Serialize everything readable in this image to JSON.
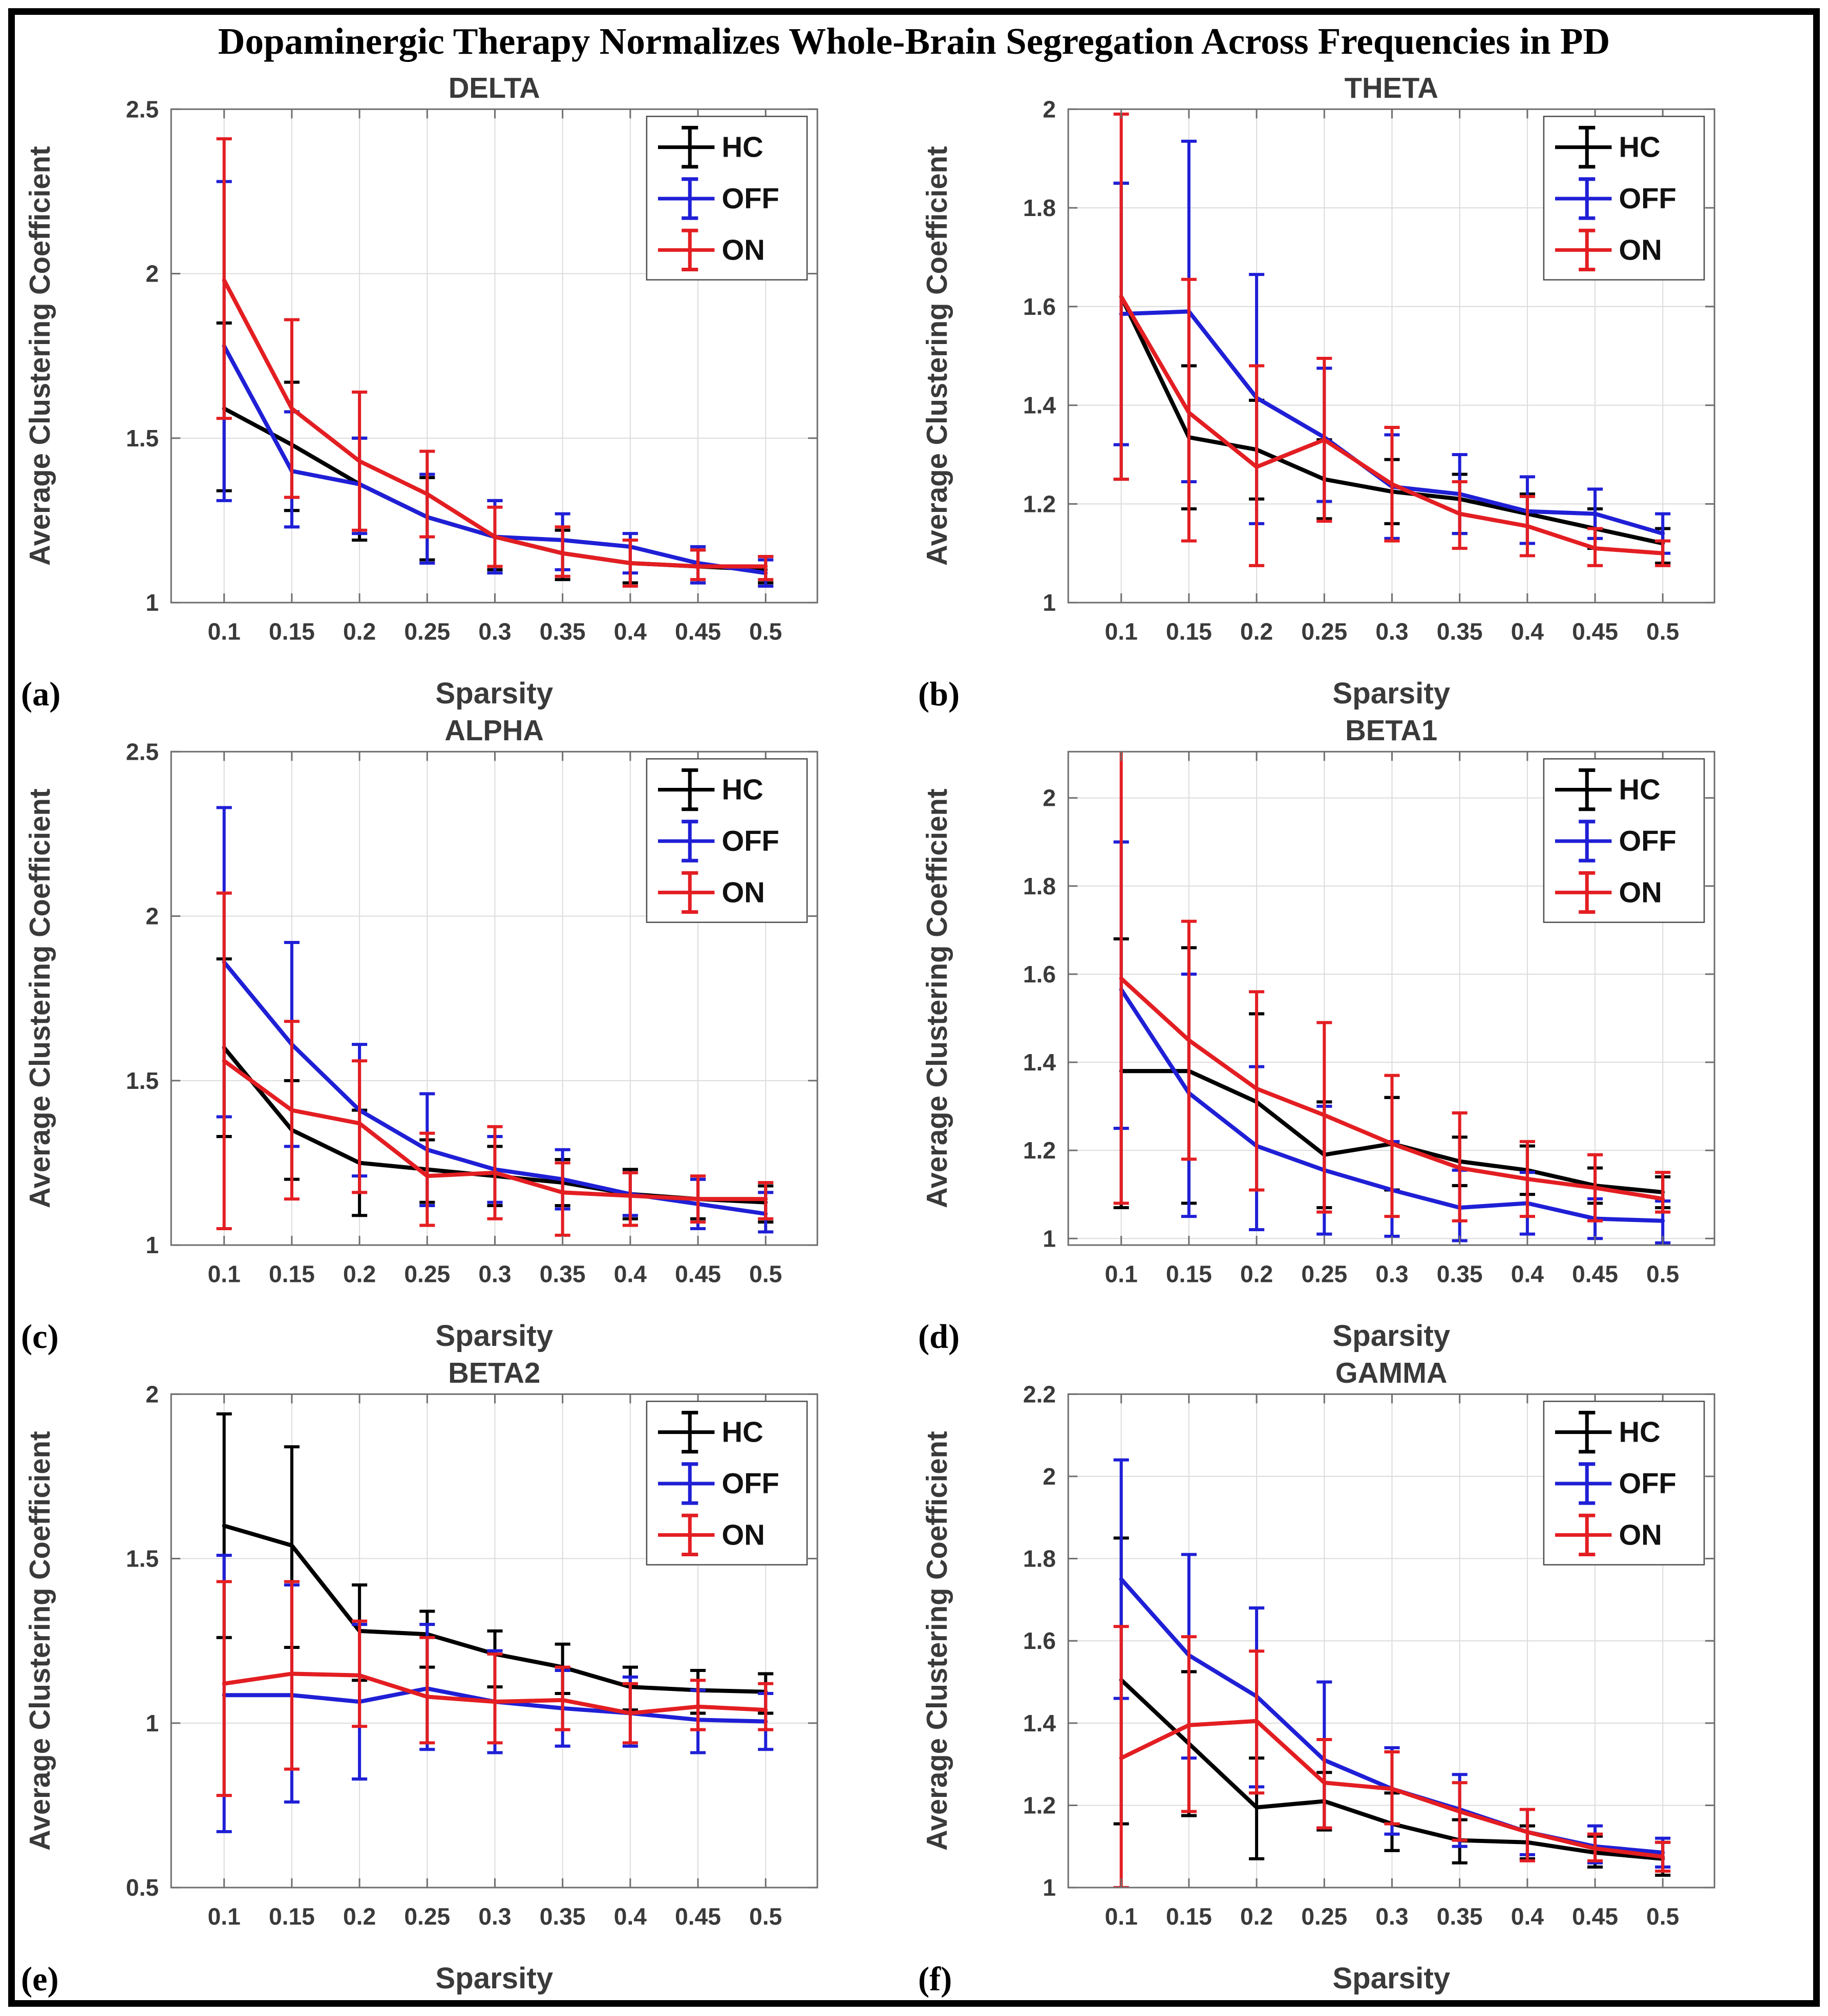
{
  "figure": {
    "title": "Dopaminergic Therapy Normalizes Whole-Brain Segregation Across Frequencies in PD",
    "xlabel": "Sparsity",
    "ylabel": "Average Clustering Coefficient",
    "legend_labels": [
      "HC",
      "OFF",
      "ON"
    ],
    "colors": {
      "HC": "#000000",
      "OFF": "#1f1fd6",
      "ON": "#e31e22"
    },
    "grid_color": "#dcdcdc",
    "axis_color": "#6f6f6f",
    "text_color": "#3a3a3a",
    "xtick_labels": [
      "0.1",
      "0.15",
      "0.2",
      "0.25",
      "0.3",
      "0.35",
      "0.4",
      "0.45",
      "0.5"
    ]
  },
  "chart_data": [
    {
      "type": "line",
      "letter": "(a)",
      "title": "DELTA",
      "xlabel": "Sparsity",
      "ylabel": "Average Clustering Coefficient",
      "x": [
        0.1,
        0.15,
        0.2,
        0.25,
        0.3,
        0.35,
        0.4,
        0.45,
        0.5
      ],
      "ylim": [
        1,
        2.5
      ],
      "yticks": [
        1,
        1.5,
        2,
        2.5
      ],
      "ytick_labels": [
        "1",
        "1.5",
        "2",
        "2.5"
      ],
      "legend": [
        "HC",
        "OFF",
        "ON"
      ],
      "series": [
        {
          "name": "HC",
          "color": "#000000",
          "values": [
            1.59,
            1.48,
            1.36,
            1.26,
            1.2,
            1.15,
            1.12,
            1.11,
            1.1
          ],
          "err_lo": [
            1.34,
            1.28,
            1.19,
            1.13,
            1.1,
            1.07,
            1.06,
            1.06,
            1.06
          ],
          "err_hi": [
            1.85,
            1.67,
            1.5,
            1.38,
            1.31,
            1.22,
            1.19,
            1.16,
            1.14
          ]
        },
        {
          "name": "OFF",
          "color": "#1f1fd6",
          "values": [
            1.78,
            1.4,
            1.36,
            1.26,
            1.2,
            1.19,
            1.17,
            1.12,
            1.09
          ],
          "err_lo": [
            1.31,
            1.23,
            1.21,
            1.12,
            1.09,
            1.1,
            1.09,
            1.06,
            1.05
          ],
          "err_hi": [
            2.28,
            1.58,
            1.5,
            1.39,
            1.31,
            1.27,
            1.21,
            1.17,
            1.13
          ]
        },
        {
          "name": "ON",
          "color": "#e31e22",
          "values": [
            1.98,
            1.59,
            1.43,
            1.33,
            1.2,
            1.15,
            1.12,
            1.11,
            1.11
          ],
          "err_lo": [
            1.56,
            1.32,
            1.22,
            1.2,
            1.11,
            1.08,
            1.05,
            1.07,
            1.07
          ],
          "err_hi": [
            2.41,
            1.86,
            1.64,
            1.46,
            1.29,
            1.23,
            1.19,
            1.16,
            1.14
          ]
        }
      ]
    },
    {
      "type": "line",
      "letter": "(b)",
      "title": "THETA",
      "xlabel": "Sparsity",
      "ylabel": "Average Clustering Coefficient",
      "x": [
        0.1,
        0.15,
        0.2,
        0.25,
        0.3,
        0.35,
        0.4,
        0.45,
        0.5
      ],
      "ylim": [
        1,
        2
      ],
      "yticks": [
        1,
        1.2,
        1.4,
        1.6,
        1.8,
        2
      ],
      "ytick_labels": [
        "1",
        "1.2",
        "1.4",
        "1.6",
        "1.8",
        "2"
      ],
      "legend": [
        "HC",
        "OFF",
        "ON"
      ],
      "series": [
        {
          "name": "HC",
          "color": "#000000",
          "values": [
            1.62,
            1.335,
            1.31,
            1.25,
            1.225,
            1.21,
            1.18,
            1.15,
            1.12
          ],
          "err_lo": [
            1.25,
            1.19,
            1.21,
            1.17,
            1.16,
            1.14,
            1.12,
            1.11,
            1.08
          ],
          "err_hi": [
            1.85,
            1.48,
            1.41,
            1.33,
            1.29,
            1.26,
            1.22,
            1.19,
            1.15
          ]
        },
        {
          "name": "OFF",
          "color": "#1f1fd6",
          "values": [
            1.585,
            1.59,
            1.415,
            1.335,
            1.235,
            1.22,
            1.185,
            1.18,
            1.14
          ],
          "err_lo": [
            1.32,
            1.245,
            1.16,
            1.205,
            1.13,
            1.14,
            1.12,
            1.13,
            1.1
          ],
          "err_hi": [
            1.85,
            1.935,
            1.665,
            1.475,
            1.34,
            1.3,
            1.255,
            1.23,
            1.18
          ]
        },
        {
          "name": "ON",
          "color": "#e31e22",
          "values": [
            1.62,
            1.385,
            1.275,
            1.33,
            1.24,
            1.18,
            1.155,
            1.11,
            1.1
          ],
          "err_lo": [
            1.25,
            1.125,
            1.075,
            1.165,
            1.125,
            1.11,
            1.095,
            1.075,
            1.075
          ],
          "err_hi": [
            1.99,
            1.655,
            1.48,
            1.495,
            1.355,
            1.245,
            1.215,
            1.15,
            1.125
          ]
        }
      ]
    },
    {
      "type": "line",
      "letter": "(c)",
      "title": "ALPHA",
      "xlabel": "Sparsity",
      "ylabel": "Average Clustering Coefficient",
      "x": [
        0.1,
        0.15,
        0.2,
        0.25,
        0.3,
        0.35,
        0.4,
        0.45,
        0.5
      ],
      "ylim": [
        1,
        2.5
      ],
      "yticks": [
        1,
        1.5,
        2,
        2.5
      ],
      "ytick_labels": [
        "1",
        "1.5",
        "2",
        "2.5"
      ],
      "legend": [
        "HC",
        "OFF",
        "ON"
      ],
      "series": [
        {
          "name": "HC",
          "color": "#000000",
          "values": [
            1.6,
            1.35,
            1.25,
            1.23,
            1.21,
            1.19,
            1.155,
            1.14,
            1.13
          ],
          "err_lo": [
            1.33,
            1.2,
            1.09,
            1.13,
            1.12,
            1.12,
            1.08,
            1.08,
            1.07
          ],
          "err_hi": [
            1.87,
            1.5,
            1.41,
            1.32,
            1.3,
            1.26,
            1.23,
            1.2,
            1.18
          ]
        },
        {
          "name": "OFF",
          "color": "#1f1fd6",
          "values": [
            1.86,
            1.61,
            1.41,
            1.29,
            1.23,
            1.2,
            1.155,
            1.125,
            1.095
          ],
          "err_lo": [
            1.39,
            1.3,
            1.21,
            1.12,
            1.13,
            1.11,
            1.09,
            1.05,
            1.04
          ],
          "err_hi": [
            2.33,
            1.92,
            1.61,
            1.46,
            1.33,
            1.29,
            1.22,
            1.2,
            1.16
          ]
        },
        {
          "name": "ON",
          "color": "#e31e22",
          "values": [
            1.56,
            1.41,
            1.37,
            1.21,
            1.22,
            1.16,
            1.15,
            1.14,
            1.14
          ],
          "err_lo": [
            1.05,
            1.14,
            1.16,
            1.06,
            1.08,
            1.03,
            1.06,
            1.07,
            1.08
          ],
          "err_hi": [
            2.07,
            1.68,
            1.56,
            1.34,
            1.36,
            1.25,
            1.22,
            1.21,
            1.19
          ]
        }
      ]
    },
    {
      "type": "line",
      "letter": "(d)",
      "title": "BETA1",
      "xlabel": "Sparsity",
      "ylabel": "Average Clustering Coefficient",
      "x": [
        0.1,
        0.15,
        0.2,
        0.25,
        0.3,
        0.35,
        0.4,
        0.45,
        0.5
      ],
      "ylim": [
        0.985,
        2.105
      ],
      "yticks": [
        1,
        1.2,
        1.4,
        1.6,
        1.8,
        2
      ],
      "ytick_labels": [
        "1",
        "1.2",
        "1.4",
        "1.6",
        "1.8",
        "2"
      ],
      "legend": [
        "HC",
        "OFF",
        "ON"
      ],
      "series": [
        {
          "name": "HC",
          "color": "#000000",
          "values": [
            1.38,
            1.38,
            1.31,
            1.19,
            1.215,
            1.175,
            1.155,
            1.12,
            1.105
          ],
          "err_lo": [
            1.07,
            1.08,
            1.11,
            1.07,
            1.11,
            1.12,
            1.1,
            1.08,
            1.07
          ],
          "err_hi": [
            1.68,
            1.66,
            1.51,
            1.31,
            1.32,
            1.23,
            1.21,
            1.16,
            1.14
          ]
        },
        {
          "name": "OFF",
          "color": "#1f1fd6",
          "values": [
            1.565,
            1.33,
            1.21,
            1.155,
            1.11,
            1.07,
            1.08,
            1.045,
            1.04
          ],
          "err_lo": [
            1.25,
            1.05,
            1.02,
            1.01,
            1.005,
            0.995,
            1.01,
            1.0,
            0.99
          ],
          "err_hi": [
            1.9,
            1.6,
            1.39,
            1.3,
            1.22,
            1.155,
            1.15,
            1.09,
            1.085
          ]
        },
        {
          "name": "ON",
          "color": "#e31e22",
          "values": [
            1.59,
            1.45,
            1.34,
            1.28,
            1.215,
            1.16,
            1.135,
            1.115,
            1.09
          ],
          "err_lo": [
            1.08,
            1.18,
            1.11,
            1.06,
            1.05,
            1.04,
            1.05,
            1.04,
            1.06
          ],
          "err_hi": [
            2.12,
            1.72,
            1.56,
            1.49,
            1.37,
            1.285,
            1.22,
            1.19,
            1.15
          ]
        }
      ]
    },
    {
      "type": "line",
      "letter": "(e)",
      "title": "BETA2",
      "xlabel": "Sparsity",
      "ylabel": "Average Clustering Coefficient",
      "x": [
        0.1,
        0.15,
        0.2,
        0.25,
        0.3,
        0.35,
        0.4,
        0.45,
        0.5
      ],
      "ylim": [
        0.5,
        2
      ],
      "yticks": [
        0.5,
        1,
        1.5,
        2
      ],
      "ytick_labels": [
        "0.5",
        "1",
        "1.5",
        "2"
      ],
      "legend": [
        "HC",
        "OFF",
        "ON"
      ],
      "series": [
        {
          "name": "HC",
          "color": "#000000",
          "values": [
            1.6,
            1.54,
            1.28,
            1.27,
            1.21,
            1.17,
            1.11,
            1.1,
            1.095
          ],
          "err_lo": [
            1.26,
            1.23,
            1.13,
            1.17,
            1.11,
            1.09,
            1.04,
            1.03,
            1.03
          ],
          "err_hi": [
            1.94,
            1.84,
            1.42,
            1.34,
            1.28,
            1.24,
            1.17,
            1.16,
            1.15
          ]
        },
        {
          "name": "OFF",
          "color": "#1f1fd6",
          "values": [
            1.085,
            1.085,
            1.065,
            1.105,
            1.065,
            1.045,
            1.03,
            1.01,
            1.005
          ],
          "err_lo": [
            0.67,
            0.76,
            0.83,
            0.92,
            0.91,
            0.93,
            0.93,
            0.91,
            0.92
          ],
          "err_hi": [
            1.51,
            1.42,
            1.3,
            1.3,
            1.22,
            1.16,
            1.14,
            1.1,
            1.09
          ]
        },
        {
          "name": "ON",
          "color": "#e31e22",
          "values": [
            1.12,
            1.15,
            1.145,
            1.08,
            1.065,
            1.07,
            1.03,
            1.05,
            1.04
          ],
          "err_lo": [
            0.78,
            0.86,
            0.99,
            0.94,
            0.94,
            0.98,
            0.94,
            0.98,
            0.98
          ],
          "err_hi": [
            1.43,
            1.43,
            1.31,
            1.26,
            1.21,
            1.17,
            1.12,
            1.13,
            1.12
          ]
        }
      ]
    },
    {
      "type": "line",
      "letter": "(f)",
      "title": "GAMMA",
      "xlabel": "Sparsity",
      "ylabel": "Average Clustering Coefficient",
      "x": [
        0.1,
        0.15,
        0.2,
        0.25,
        0.3,
        0.35,
        0.4,
        0.45,
        0.5
      ],
      "ylim": [
        1,
        2.2
      ],
      "yticks": [
        1,
        1.2,
        1.4,
        1.6,
        1.8,
        2,
        2.2
      ],
      "ytick_labels": [
        "1",
        "1.2",
        "1.4",
        "1.6",
        "1.8",
        "2",
        "2.2"
      ],
      "legend": [
        "HC",
        "OFF",
        "ON"
      ],
      "series": [
        {
          "name": "HC",
          "color": "#000000",
          "values": [
            1.505,
            1.35,
            1.195,
            1.21,
            1.155,
            1.115,
            1.11,
            1.085,
            1.07
          ],
          "err_lo": [
            1.155,
            1.175,
            1.07,
            1.14,
            1.09,
            1.06,
            1.07,
            1.05,
            1.03
          ],
          "err_hi": [
            1.85,
            1.525,
            1.315,
            1.28,
            1.23,
            1.165,
            1.15,
            1.125,
            1.11
          ]
        },
        {
          "name": "OFF",
          "color": "#1f1fd6",
          "values": [
            1.75,
            1.565,
            1.465,
            1.31,
            1.24,
            1.19,
            1.135,
            1.1,
            1.085
          ],
          "err_lo": [
            1.46,
            1.315,
            1.245,
            1.145,
            1.13,
            1.1,
            1.08,
            1.06,
            1.05
          ],
          "err_hi": [
            2.04,
            1.81,
            1.68,
            1.5,
            1.34,
            1.275,
            1.19,
            1.15,
            1.12
          ]
        },
        {
          "name": "ON",
          "color": "#e31e22",
          "values": [
            1.315,
            1.395,
            1.405,
            1.255,
            1.24,
            1.185,
            1.135,
            1.095,
            1.075
          ],
          "err_lo": [
            1.0,
            1.185,
            1.23,
            1.145,
            1.155,
            1.115,
            1.065,
            1.065,
            1.04
          ],
          "err_hi": [
            1.635,
            1.61,
            1.575,
            1.36,
            1.33,
            1.255,
            1.19,
            1.13,
            1.11
          ]
        }
      ]
    }
  ]
}
